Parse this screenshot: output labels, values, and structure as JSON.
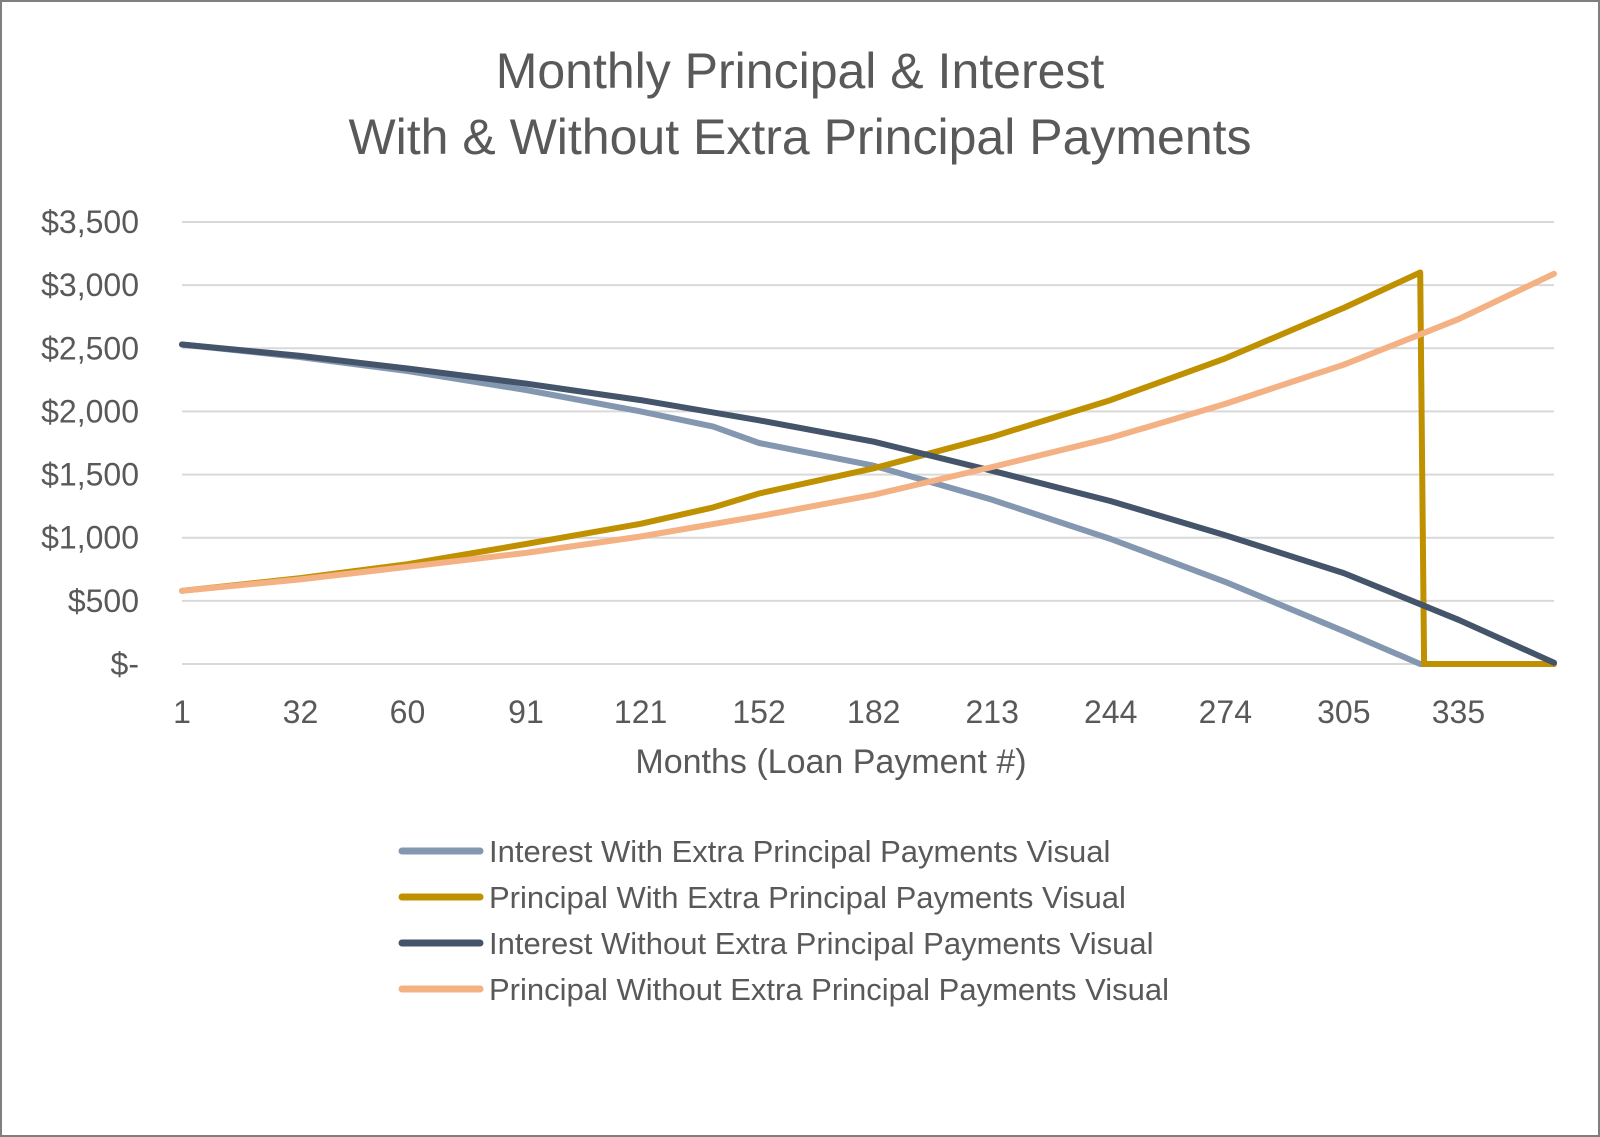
{
  "chart_data": {
    "type": "line",
    "title": [
      "Monthly Principal & Interest",
      "With & Without Extra Principal Payments"
    ],
    "xlabel": "Months (Loan Payment #)",
    "ylabel": "",
    "x_range": [
      1,
      360
    ],
    "ylim": [
      0,
      3500
    ],
    "x_tick_labels": [
      "1",
      "32",
      "60",
      "91",
      "121",
      "152",
      "182",
      "213",
      "244",
      "274",
      "305",
      "335"
    ],
    "y_tick_labels": [
      "$-",
      "$500",
      "$1,000",
      "$1,500",
      "$2,000",
      "$2,500",
      "$3,000",
      "$3,500"
    ],
    "y_tick_values": [
      0,
      500,
      1000,
      1500,
      2000,
      2500,
      3000,
      3500
    ],
    "grid": true,
    "legend_position": "bottom",
    "series": [
      {
        "name": "Interest With Extra Principal Payments Visual",
        "color": "#8497b0",
        "points": [
          [
            1,
            2530
          ],
          [
            32,
            2430
          ],
          [
            60,
            2320
          ],
          [
            91,
            2170
          ],
          [
            121,
            2000
          ],
          [
            140,
            1880
          ],
          [
            152,
            1750
          ],
          [
            182,
            1570
          ],
          [
            213,
            1300
          ],
          [
            244,
            990
          ],
          [
            274,
            650
          ],
          [
            305,
            260
          ],
          [
            325,
            0
          ],
          [
            360,
            0
          ]
        ]
      },
      {
        "name": "Principal With Extra Principal Payments Visual",
        "color": "#bf9000",
        "points": [
          [
            1,
            580
          ],
          [
            32,
            680
          ],
          [
            60,
            790
          ],
          [
            91,
            950
          ],
          [
            121,
            1110
          ],
          [
            140,
            1240
          ],
          [
            152,
            1350
          ],
          [
            182,
            1550
          ],
          [
            213,
            1800
          ],
          [
            244,
            2090
          ],
          [
            274,
            2420
          ],
          [
            305,
            2820
          ],
          [
            325,
            3100
          ],
          [
            326,
            0
          ],
          [
            360,
            0
          ]
        ]
      },
      {
        "name": "Interest Without Extra Principal Payments Visual",
        "color": "#44546a",
        "points": [
          [
            1,
            2530
          ],
          [
            32,
            2440
          ],
          [
            60,
            2340
          ],
          [
            91,
            2220
          ],
          [
            121,
            2090
          ],
          [
            152,
            1930
          ],
          [
            182,
            1760
          ],
          [
            213,
            1530
          ],
          [
            244,
            1290
          ],
          [
            274,
            1020
          ],
          [
            305,
            720
          ],
          [
            335,
            350
          ],
          [
            360,
            10
          ]
        ]
      },
      {
        "name": "Principal Without Extra Principal Payments Visual",
        "color": "#f4b183",
        "points": [
          [
            1,
            580
          ],
          [
            32,
            670
          ],
          [
            60,
            770
          ],
          [
            91,
            880
          ],
          [
            121,
            1010
          ],
          [
            152,
            1170
          ],
          [
            182,
            1340
          ],
          [
            213,
            1560
          ],
          [
            244,
            1790
          ],
          [
            274,
            2060
          ],
          [
            305,
            2370
          ],
          [
            335,
            2730
          ],
          [
            360,
            3090
          ]
        ]
      }
    ]
  }
}
